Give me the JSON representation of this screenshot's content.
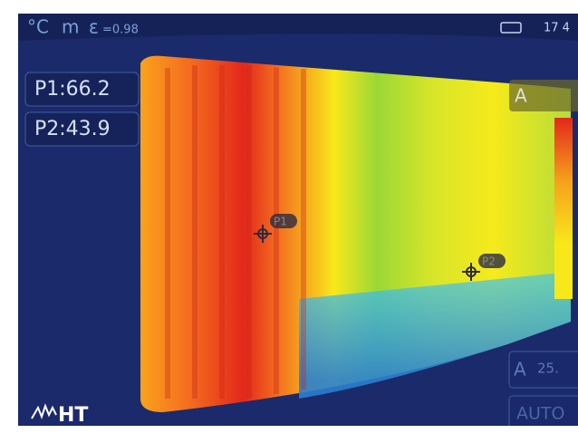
{
  "status": {
    "unit": "°C",
    "mode": "m",
    "emissivity_symbol": "ε",
    "emissivity": "=0.98",
    "time": "17 4"
  },
  "measurements": [
    {
      "label": "P1:66.2"
    },
    {
      "label": "P2:43.9"
    }
  ],
  "markers": [
    {
      "label": "P1"
    },
    {
      "label": "P2"
    }
  ],
  "scale": {
    "max_mode": "A",
    "min_mode": "A",
    "min_value": "25.",
    "range_mode": "AUTO"
  },
  "logo": "HT"
}
